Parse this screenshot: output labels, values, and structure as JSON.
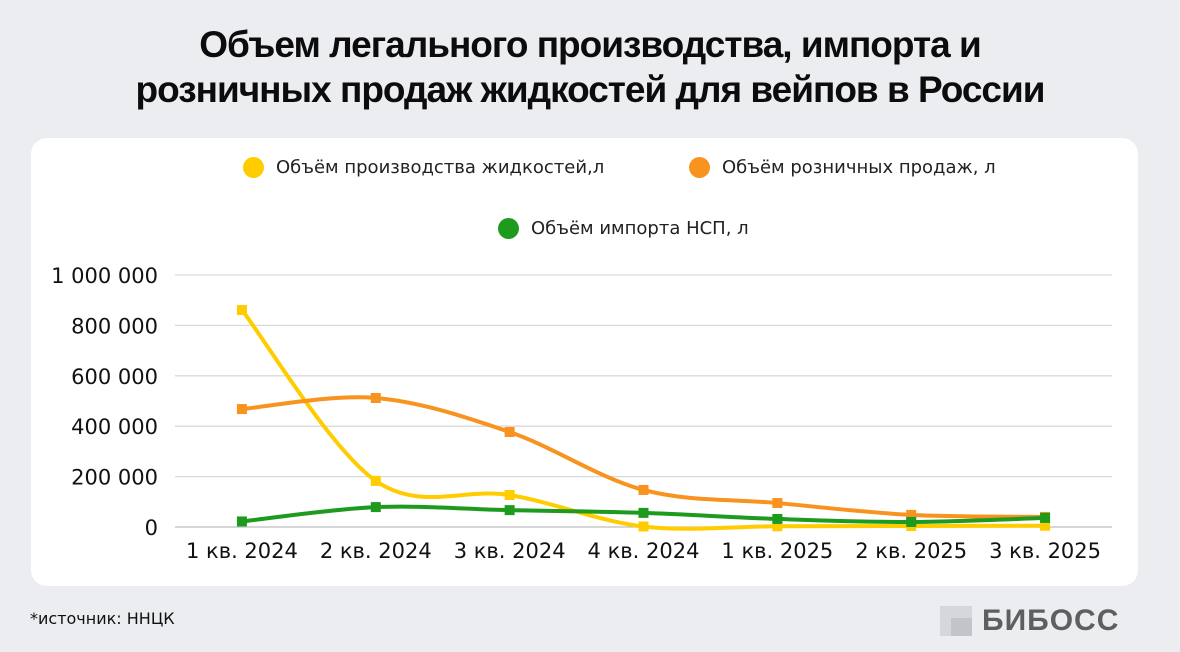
{
  "title": {
    "line1": "Объем легального производства, импорта и",
    "line2": "розничных продаж жидкостей для вейпов в России"
  },
  "legend": [
    {
      "label": "Объём производства жидкостей,л",
      "color": "#FFCC00"
    },
    {
      "label": "Объём розничных продаж, л",
      "color": "#F7931E"
    },
    {
      "label": "Объём импорта НСП, л",
      "color": "#1E9B1E"
    }
  ],
  "footer": {
    "source": "*источник: ННЦК",
    "logo": "БИБОСС"
  },
  "chart_data": {
    "type": "line",
    "title": "Объем легального производства, импорта и розничных продаж жидкостей для вейпов в России",
    "xlabel": "",
    "ylabel": "",
    "categories": [
      "1 кв. 2024",
      "2 кв. 2024",
      "3 кв. 2024",
      "4 кв. 2024",
      "1 кв. 2025",
      "2 кв. 2025",
      "3 кв. 2025"
    ],
    "ylim": [
      0,
      1000000
    ],
    "yticks": [
      0,
      200000,
      400000,
      600000,
      800000,
      1000000
    ],
    "ytick_labels": [
      "0",
      "200 000",
      "400 000",
      "600 000",
      "800 000",
      "1 000 000"
    ],
    "grid": true,
    "legend_position": "top",
    "smooth": true,
    "series": [
      {
        "name": "Объём производства жидкостей,л",
        "color": "#FFCC00",
        "values": [
          861000,
          183000,
          127000,
          2000,
          3000,
          4000,
          5000
        ]
      },
      {
        "name": "Объём розничных продаж, л",
        "color": "#F7931E",
        "values": [
          468000,
          512000,
          377000,
          147000,
          95000,
          48000,
          40000
        ]
      },
      {
        "name": "Объём импорта НСП, л",
        "color": "#1E9B1E",
        "values": [
          22000,
          79000,
          67000,
          56000,
          32000,
          20000,
          36000
        ]
      }
    ]
  }
}
